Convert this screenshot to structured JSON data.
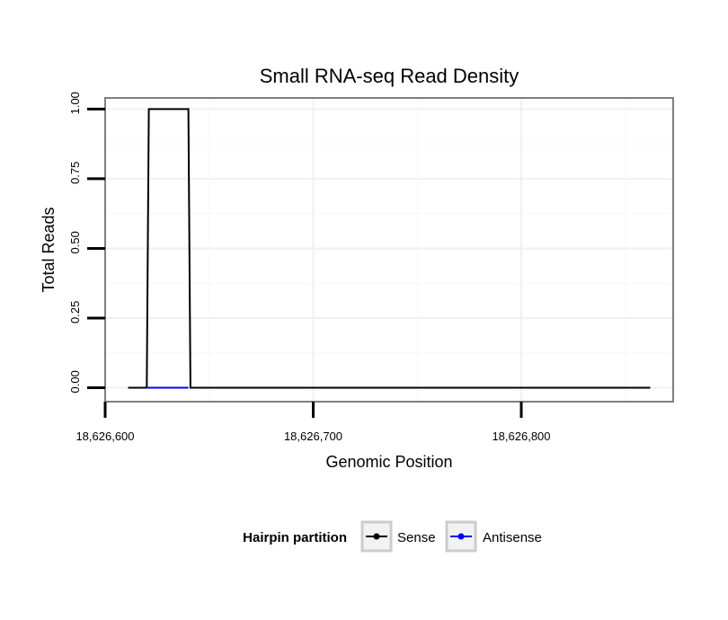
{
  "chart_data": {
    "type": "line",
    "title": "Small RNA-seq Read Density",
    "xlabel": "Genomic Position",
    "ylabel": "Total Reads",
    "xlim": [
      18626600,
      18626873
    ],
    "ylim": [
      -0.05,
      1.04
    ],
    "xticks": [
      {
        "value": 18626600,
        "label": "18,626,600"
      },
      {
        "value": 18626700,
        "label": "18,626,700"
      },
      {
        "value": 18626800,
        "label": "18,626,800"
      }
    ],
    "yticks": [
      {
        "value": 0.0,
        "label": "0.00"
      },
      {
        "value": 0.25,
        "label": "0.25"
      },
      {
        "value": 0.5,
        "label": "0.50"
      },
      {
        "value": 0.75,
        "label": "0.75"
      },
      {
        "value": 1.0,
        "label": "1.00"
      }
    ],
    "grid": true,
    "series": [
      {
        "name": "Sense",
        "color": "#000000",
        "x": [
          18626611,
          18626620,
          18626621,
          18626640,
          18626641,
          18626862
        ],
        "y": [
          0,
          0,
          1,
          1,
          0,
          0
        ]
      },
      {
        "name": "Antisense",
        "color": "#0000ff",
        "x": [
          18626620,
          18626640
        ],
        "y": [
          0,
          0
        ]
      }
    ],
    "legend": {
      "title": "Hairpin partition",
      "position": "bottom"
    }
  }
}
